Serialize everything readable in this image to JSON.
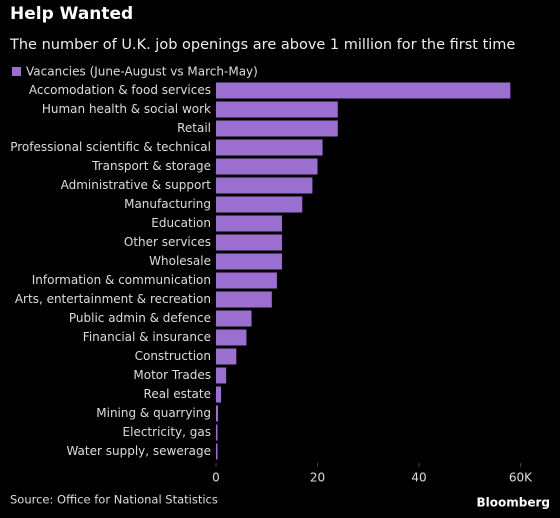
{
  "chart_data": {
    "type": "barh",
    "title": "Help Wanted",
    "subtitle": "The number of U.K. job openings are above 1 million for the first time",
    "categories": [
      "Accomodation & food services",
      "Human health & social work",
      "Retail",
      "Professional scientific & technical",
      "Transport & storage",
      "Administrative & support",
      "Manufacturing",
      "Education",
      "Other services",
      "Wholesale",
      "Information & communication",
      "Arts, entertainment & recreation",
      "Public admin & defence",
      "Financial & insurance",
      "Construction",
      "Motor Trades",
      "Real estate",
      "Mining & quarrying",
      "Electricity, gas",
      "Water supply, sewerage"
    ],
    "series": [
      {
        "name": "Vacancies (June-August vs March-May)",
        "color": "#9a6fd0",
        "values": [
          58,
          24,
          24,
          21,
          20,
          19,
          17,
          13,
          13,
          13,
          12,
          11,
          7,
          6,
          4,
          2,
          1,
          0.4,
          0.3,
          0.3
        ]
      }
    ],
    "xlim": [
      0,
      67
    ],
    "xticks": [
      0,
      20,
      40,
      {
        "value": 60,
        "label": "60K"
      }
    ],
    "source": "Source: Office for National Statistics",
    "brand": "Bloomberg"
  }
}
